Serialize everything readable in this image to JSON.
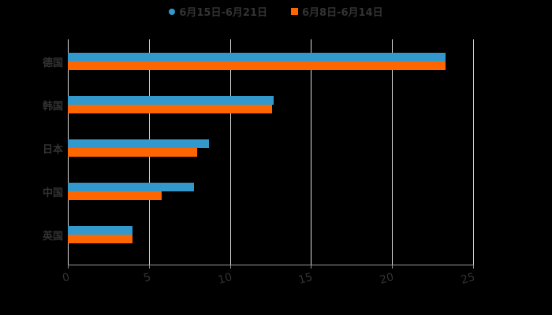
{
  "legend": [
    {
      "label": "6月15日-6月21日",
      "color": "#3399cc",
      "shape": "circle"
    },
    {
      "label": "6月8日-6月14日",
      "color": "#ff6600",
      "shape": "square"
    }
  ],
  "chart_data": {
    "type": "bar",
    "orientation": "horizontal",
    "title": "",
    "xlabel": "",
    "ylabel": "",
    "categories": [
      "德国",
      "韩国",
      "日本",
      "中国",
      "英国"
    ],
    "series": [
      {
        "name": "6月15日-6月21日",
        "color": "#3399cc",
        "values": [
          23.3,
          12.7,
          8.7,
          7.8,
          4.0
        ]
      },
      {
        "name": "6月8日-6月14日",
        "color": "#ff6600",
        "values": [
          23.3,
          12.6,
          8.0,
          5.8,
          4.0
        ]
      }
    ],
    "xlim": [
      0,
      25
    ],
    "xticks": [
      "0",
      "5",
      "10",
      "15",
      "20",
      "25"
    ],
    "grid": true,
    "legend_position": "top"
  }
}
